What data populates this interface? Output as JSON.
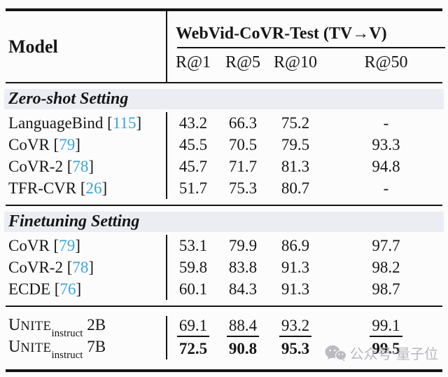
{
  "table": {
    "model_header": "Model",
    "group_header": "WebVid-CoVR-Test (TV→V)",
    "columns": [
      "R@1",
      "R@5",
      "R@10",
      "R@50"
    ],
    "sections": [
      {
        "title": "Zero-shot Setting",
        "rows": [
          {
            "model": "LanguageBind",
            "cite": "115",
            "values": [
              "43.2",
              "66.3",
              "75.2",
              "-"
            ]
          },
          {
            "model": "CoVR",
            "cite": "79",
            "values": [
              "45.5",
              "70.5",
              "79.5",
              "93.3"
            ]
          },
          {
            "model": "CoVR-2",
            "cite": "78",
            "values": [
              "45.7",
              "71.7",
              "81.3",
              "94.8"
            ]
          },
          {
            "model": "TFR-CVR",
            "cite": "26",
            "values": [
              "51.7",
              "75.3",
              "80.7",
              "-"
            ]
          }
        ]
      },
      {
        "title": "Finetuning Setting",
        "rows": [
          {
            "model": "CoVR",
            "cite": "79",
            "values": [
              "53.1",
              "79.9",
              "86.9",
              "97.7"
            ]
          },
          {
            "model": "CoVR-2",
            "cite": "78",
            "values": [
              "59.8",
              "83.8",
              "91.3",
              "98.2"
            ]
          },
          {
            "model": "ECDE",
            "cite": "76",
            "values": [
              "60.1",
              "84.3",
              "91.3",
              "98.7"
            ]
          }
        ]
      }
    ],
    "ours_rows": [
      {
        "name_caps": "UNITE",
        "name_sub": "instruct",
        "variant": "2B",
        "values": [
          "69.1",
          "88.4",
          "93.2",
          "99.1"
        ],
        "emphasis": "underline"
      },
      {
        "name_caps": "UNITE",
        "name_sub": "instruct",
        "variant": "7B",
        "values": [
          "72.5",
          "90.8",
          "95.3",
          "99.5"
        ],
        "emphasis": "bold"
      }
    ]
  },
  "watermark": {
    "icon": "wechat-icon",
    "text": "公众号·量子位"
  },
  "colors": {
    "citation": "#3aa5d9",
    "section_band": "#ebedf2",
    "rule": "#141414",
    "watermark": "#b9b9bd",
    "background": "#fcfcfd"
  }
}
